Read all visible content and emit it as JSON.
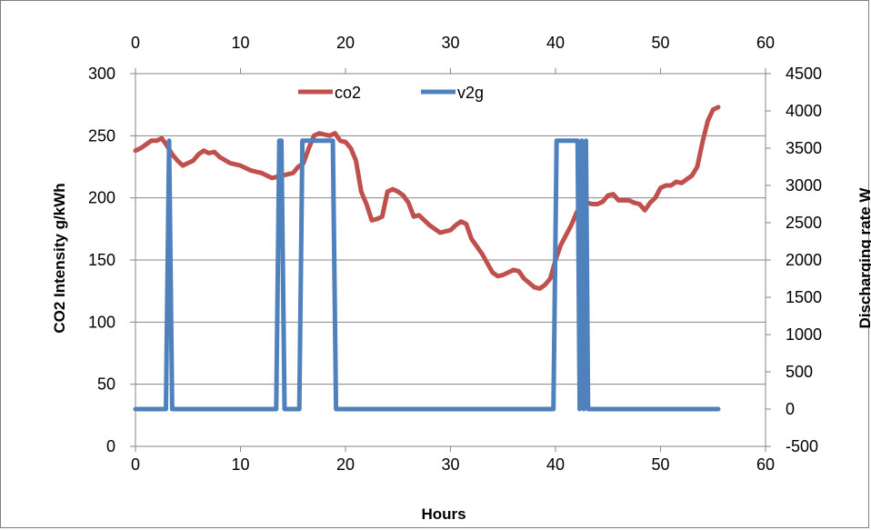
{
  "chart_data": {
    "type": "line",
    "xlabel": "Hours",
    "ylabel_left": "CO2 Intensity g/kWh",
    "ylabel_right": "Discharging rate W",
    "x_ticks": [
      0,
      10,
      20,
      30,
      40,
      50,
      60
    ],
    "x_ticks_top": [
      0,
      10,
      20,
      30,
      40,
      50,
      60
    ],
    "y_left_ticks": [
      0,
      50,
      100,
      150,
      200,
      250,
      300
    ],
    "y_right_ticks": [
      -500,
      0,
      500,
      1000,
      1500,
      2000,
      2500,
      3000,
      3500,
      4000,
      4500
    ],
    "xlim": [
      0,
      60
    ],
    "ylim_left": [
      0,
      300
    ],
    "ylim_right": [
      -500,
      4500
    ],
    "grid": "horizontal",
    "legend_position": "top-left",
    "series": [
      {
        "name": "co2",
        "axis": "left",
        "color": "#c0504d",
        "x": [
          0,
          0.5,
          1,
          1.5,
          2,
          2.5,
          3,
          3.5,
          4,
          4.5,
          5,
          5.5,
          6,
          6.5,
          7,
          7.5,
          8,
          9,
          10,
          11,
          12,
          12.5,
          13,
          14,
          15,
          15.5,
          16,
          16.5,
          17,
          17.5,
          18,
          18.5,
          19,
          19.5,
          20,
          20.5,
          21,
          21.5,
          22,
          22.5,
          23,
          23.5,
          24,
          24.5,
          25,
          25.5,
          26,
          26.5,
          27,
          28,
          29,
          30,
          30.5,
          31,
          31.5,
          32,
          33,
          34,
          34.5,
          35,
          35.5,
          36,
          36.5,
          37,
          38,
          38.5,
          39,
          39.5,
          40,
          40.5,
          41,
          41.5,
          42,
          42.5,
          43,
          43.5,
          44,
          44.5,
          45,
          45.5,
          46,
          46.5,
          47,
          47.5,
          48,
          48.5,
          49,
          49.5,
          50,
          50.5,
          51,
          51.5,
          52,
          52.5,
          53,
          53.5,
          54,
          54.5,
          55,
          55.5
        ],
        "values": [
          238,
          240,
          243,
          246,
          246,
          248,
          242,
          235,
          230,
          226,
          228,
          230,
          235,
          238,
          236,
          237,
          233,
          228,
          226,
          222,
          220,
          218,
          216,
          218,
          220,
          225,
          228,
          240,
          250,
          252,
          251,
          250,
          252,
          246,
          245,
          240,
          230,
          205,
          195,
          182,
          183,
          185,
          205,
          207,
          205,
          202,
          196,
          185,
          186,
          178,
          172,
          174,
          178,
          181,
          179,
          167,
          155,
          140,
          137,
          138,
          140,
          142,
          141,
          135,
          128,
          127,
          130,
          135,
          150,
          162,
          170,
          178,
          188,
          195,
          196,
          195,
          195,
          197,
          202,
          203,
          198,
          198,
          198,
          196,
          195,
          190,
          196,
          200,
          208,
          210,
          210,
          213,
          212,
          215,
          218,
          225,
          245,
          262,
          271,
          273
        ]
      },
      {
        "name": "v2g",
        "axis": "right",
        "color": "#4f81bd",
        "x": [
          0,
          2.9,
          3.2,
          3.5,
          13.4,
          13.7,
          13.9,
          14.2,
          14.5,
          15.6,
          15.9,
          18.8,
          19.1,
          39.8,
          40.1,
          42.1,
          42.3,
          42.5,
          42.7,
          42.9,
          43.1,
          55.5
        ],
        "values": [
          0,
          0,
          3600,
          0,
          0,
          3600,
          3600,
          0,
          0,
          0,
          3600,
          3600,
          0,
          0,
          3600,
          3600,
          0,
          3600,
          0,
          3600,
          0,
          0
        ]
      }
    ]
  }
}
